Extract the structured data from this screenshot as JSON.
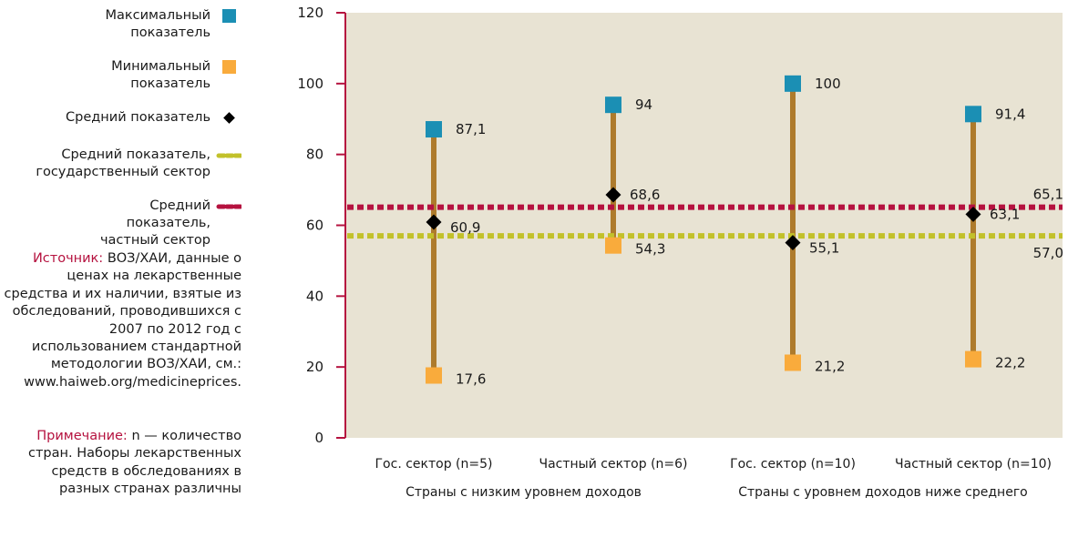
{
  "legend": {
    "items": [
      {
        "label": "Максимальный показатель",
        "marker": "square",
        "color": "#1b8fb4"
      },
      {
        "label": "Минимальный показатель",
        "marker": "square",
        "color": "#f9ab3c"
      },
      {
        "label": "Средний показатель",
        "marker": "diamond",
        "color": "#000000"
      },
      {
        "label": "Средний показатель, государственный сектор",
        "marker": "dashed-line",
        "color": "#c2c12a"
      },
      {
        "label": "Средний показатель, частный сектор",
        "marker": "dashed-line",
        "color": "#b5123f"
      }
    ]
  },
  "notes": {
    "source_label": "Источник:",
    "source_text": "ВОЗ/ХАИ, данные о ценах на лекарственные средства и их наличии, взятые из обследований, проводившихся с 2007 по 2012 год с использованием стандартной методологии ВОЗ/ХАИ, см.: www.haiweb.org/medicineprices.",
    "note_label": "Примечание:",
    "note_text": "n — количество стран. Наборы лекарственных средств в обследованиях в разных странах различны"
  },
  "colors": {
    "plot_background": "#e8e3d3",
    "axis": "#b5123f",
    "range_bar": "#ae7b2c",
    "max_marker": "#1b8fb4",
    "min_marker": "#f9ab3c",
    "mean_marker": "#000000",
    "public_mean_line": "#c2c12a",
    "private_mean_line": "#b5123f"
  },
  "chart_data": {
    "type": "range-dot",
    "ylim": [
      0,
      120
    ],
    "y_ticks": [
      0,
      20,
      40,
      60,
      80,
      100,
      120
    ],
    "y_tick_labels": [
      "0",
      "20",
      "40",
      "60",
      "80",
      "100",
      "120"
    ],
    "grid": false,
    "legend_position": "left",
    "categories": [
      "Гос. сектор (n=5)",
      "Частный сектор (n=6)",
      "Гос. сектор (n=10)",
      "Частный сектор (n=10)"
    ],
    "groups": [
      {
        "label": "Страны с низким уровнем доходов",
        "categories": [
          0,
          1
        ]
      },
      {
        "label": "Страны с уровнем доходов ниже среднего",
        "categories": [
          2,
          3
        ]
      }
    ],
    "series": [
      {
        "name": "Максимальный показатель",
        "values": [
          87.1,
          94,
          100,
          91.4
        ],
        "labels": [
          "87,1",
          "94",
          "100",
          "91,4"
        ]
      },
      {
        "name": "Минимальный показатель",
        "values": [
          17.6,
          54.3,
          21.2,
          22.2
        ],
        "labels": [
          "17,6",
          "54,3",
          "21,2",
          "22,2"
        ]
      },
      {
        "name": "Средний показатель",
        "values": [
          60.9,
          68.6,
          55.1,
          63.1
        ],
        "labels": [
          "60,9",
          "68,6",
          "55,1",
          "63,1"
        ]
      }
    ],
    "reference_lines": [
      {
        "name": "Средний показатель, частный сектор",
        "value": 65.1,
        "label": "65,1"
      },
      {
        "name": "Средний показатель, государственный сектор",
        "value": 57.0,
        "label": "57,0"
      }
    ]
  }
}
